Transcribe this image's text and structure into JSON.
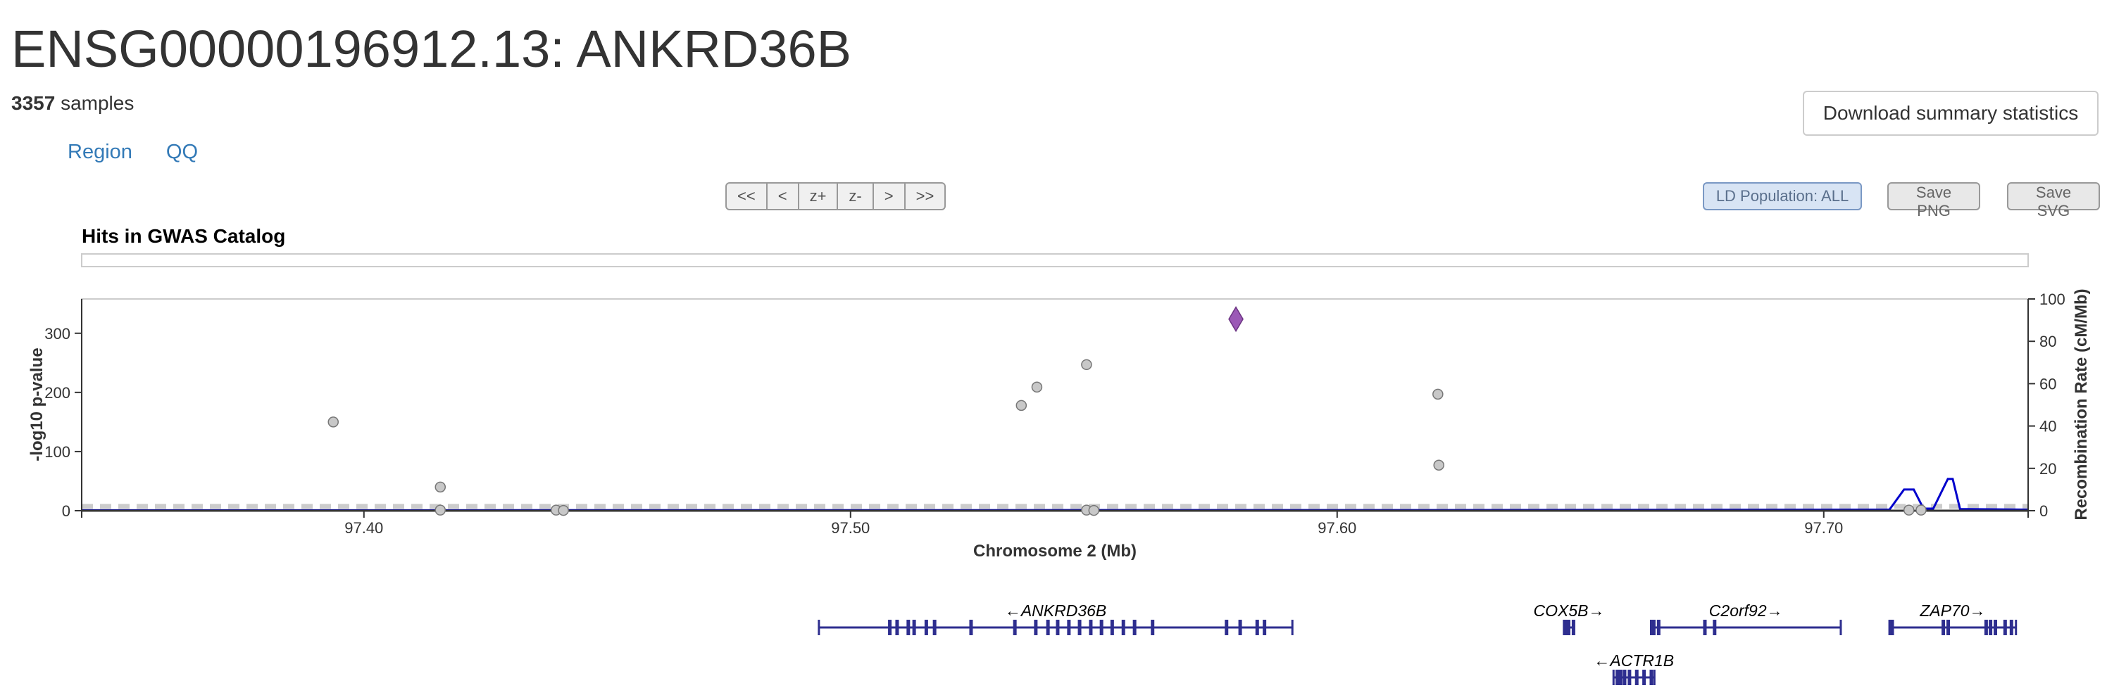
{
  "header": {
    "title": "ENSG00000196912.13: ANKRD36B",
    "sample_count": "3357",
    "sample_word": "samples",
    "download_label": "Download summary statistics"
  },
  "tabs": [
    {
      "label": "Region"
    },
    {
      "label": "QQ"
    }
  ],
  "nav_buttons": [
    {
      "label": "<<"
    },
    {
      "label": "<"
    },
    {
      "label": "z+"
    },
    {
      "label": "z-"
    },
    {
      "label": ">"
    },
    {
      "label": ">>"
    }
  ],
  "toolbar": {
    "ld_label": "LD Population: ALL",
    "save_png_label": "Save PNG",
    "save_svg_label": "Save SVG"
  },
  "gwas_panel": {
    "title": "Hits in GWAS Catalog"
  },
  "colors": {
    "point_fill": "#c8c8c8",
    "point_stroke": "#777777",
    "lead_fill": "#9b59b6",
    "recomb_line": "#0000cc",
    "gene": "#2e2e8f",
    "threshold": "#cccccc"
  },
  "chart_data": {
    "type": "scatter",
    "xlabel": "Chromosome 2 (Mb)",
    "ylabel": "-log10 p-value",
    "y2label": "Recombination Rate (cM/Mb)",
    "xlim": [
      97.342,
      97.742
    ],
    "ylim": [
      0,
      358
    ],
    "y2lim": [
      0,
      100
    ],
    "x_ticks": [
      97.4,
      97.5,
      97.6,
      97.7
    ],
    "x_tick_labels": [
      "97.40",
      "97.50",
      "97.60",
      "97.70"
    ],
    "y_ticks": [
      0,
      100,
      200,
      300
    ],
    "y2_ticks": [
      0,
      20,
      40,
      60,
      80,
      100
    ],
    "threshold": 7.3,
    "points": [
      {
        "x": 97.3937,
        "y": 150
      },
      {
        "x": 97.4157,
        "y": 40
      },
      {
        "x": 97.4157,
        "y": 1
      },
      {
        "x": 97.4395,
        "y": 1
      },
      {
        "x": 97.441,
        "y": 0.5
      },
      {
        "x": 97.5351,
        "y": 178
      },
      {
        "x": 97.5383,
        "y": 209
      },
      {
        "x": 97.5485,
        "y": 247
      },
      {
        "x": 97.5485,
        "y": 1
      },
      {
        "x": 97.55,
        "y": 0.5
      },
      {
        "x": 97.6207,
        "y": 197
      },
      {
        "x": 97.6209,
        "y": 77
      },
      {
        "x": 97.7175,
        "y": 1
      },
      {
        "x": 97.72,
        "y": 1
      }
    ],
    "lead_variant": {
      "x": 97.5792,
      "y": 324
    },
    "recombination": [
      {
        "x": 97.342,
        "y": 0.2
      },
      {
        "x": 97.62,
        "y": 0.3
      },
      {
        "x": 97.7135,
        "y": 0.5
      },
      {
        "x": 97.7165,
        "y": 10
      },
      {
        "x": 97.7185,
        "y": 10
      },
      {
        "x": 97.7205,
        "y": 1
      },
      {
        "x": 97.7225,
        "y": 1
      },
      {
        "x": 97.7255,
        "y": 15
      },
      {
        "x": 97.7265,
        "y": 15
      },
      {
        "x": 97.728,
        "y": 0.8
      },
      {
        "x": 97.742,
        "y": 0.5
      }
    ]
  },
  "genes": [
    {
      "name": "←ANKRD36B",
      "start": 97.4935,
      "end": 97.5908,
      "row": 0,
      "exons": [
        97.508,
        97.5095,
        97.5118,
        97.513,
        97.5155,
        97.5172,
        97.5247,
        97.5337,
        97.538,
        97.5405,
        97.5425,
        97.5448,
        97.547,
        97.5493,
        97.5515,
        97.5537,
        97.556,
        97.5583,
        97.562,
        97.5772,
        97.58,
        97.5835,
        97.585
      ]
    },
    {
      "name": "COX5B→",
      "start": 97.6466,
      "end": 97.6487,
      "row": 0,
      "exons": [
        97.6468,
        97.6475,
        97.6485
      ]
    },
    {
      "name": "C2orf92→",
      "start": 97.6645,
      "end": 97.7035,
      "row": 0,
      "exons": [
        97.665,
        97.666,
        97.6755,
        97.6775
      ]
    },
    {
      "name": "ZAP70→",
      "start": 97.7135,
      "end": 97.7395,
      "row": 0,
      "exons": [
        97.714,
        97.7245,
        97.7255,
        97.7333,
        97.7342,
        97.7352,
        97.7372,
        97.7385
      ]
    },
    {
      "name": "←ACTR1B",
      "start": 97.6568,
      "end": 97.6652,
      "row": 1,
      "exons": [
        97.6575,
        97.6582,
        97.659,
        97.66,
        97.6615,
        97.663,
        97.6645
      ]
    }
  ]
}
